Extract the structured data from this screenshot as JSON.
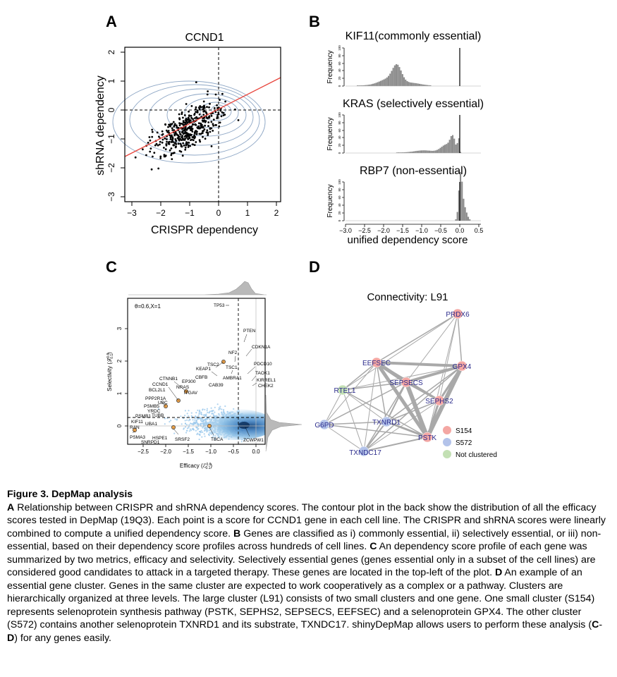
{
  "panels": {
    "A": {
      "letter": "A",
      "title": "CCND1",
      "xlabel": "CRISPR dependency",
      "ylabel": "shRNA dependency",
      "xticks": [
        "−3",
        "−2",
        "−1",
        "0",
        "1",
        "2"
      ],
      "yticks": [
        "2",
        "1",
        "0",
        "−1",
        "−2",
        "−3"
      ]
    },
    "B": {
      "letter": "B",
      "hist_titles": [
        "KIF11(commonly essential)",
        "KRAS (selectively essential)",
        "RBP7 (non-essential)"
      ],
      "ylabel": "Frequency",
      "yticks": [
        "0",
        "20",
        "40",
        "60",
        "80",
        "100"
      ],
      "xticks": [
        "−3.0",
        "−2.5",
        "−2.0",
        "−1.5",
        "−1.0",
        "−0.5",
        "0.0",
        "0.5"
      ],
      "xlabel": "unified dependency score"
    },
    "C": {
      "letter": "C",
      "param_label": "θ=0.6,X=1",
      "xlabel": "Efficacy (ℰ",
      "xlabel_sup": "0.6",
      "xlabel_sub": "0.1",
      "xlabel_end": ")",
      "ylabel": "Selectivity (𝒮",
      "ylabel_sup": "0.6",
      "ylabel_sub": "0.1",
      "ylabel_end": ")",
      "xticks": [
        "−2.5",
        "−2.0",
        "−1.5",
        "−1.0",
        "−0.5",
        "0.0"
      ],
      "yticks": [
        "0",
        "1",
        "2",
        "3"
      ],
      "genes": [
        "TP53",
        "PTEN",
        "CDKN1A",
        "NF2",
        "PDCD10",
        "TSC1",
        "TAOK1",
        "KIRREL1",
        "CHEK2",
        "TSC2",
        "KEAP1",
        "AMBRA1",
        "CAB39",
        "CBFB",
        "CTNNB1",
        "EP300",
        "ITGAV",
        "NRAS",
        "CCND1",
        "BCL2L1",
        "PPP2R1A",
        "UBC",
        "PSMB5",
        "YRDC",
        "TUBB",
        "PSMB1",
        "KIF11",
        "UBA1",
        "RAN",
        "PSMA3",
        "HSPE1",
        "SNRPD1",
        "SRSF2",
        "TBCA",
        "ZCWPW1"
      ]
    },
    "D": {
      "letter": "D",
      "title": "Connectivity: L91",
      "nodes": [
        {
          "label": "PRDX6",
          "group": "S154"
        },
        {
          "label": "EEFSEC",
          "group": "S154"
        },
        {
          "label": "GPX4",
          "group": "S154"
        },
        {
          "label": "SEPSECS",
          "group": "S154"
        },
        {
          "label": "RTEL1",
          "group": "Not clustered"
        },
        {
          "label": "SEPHS2",
          "group": "S154"
        },
        {
          "label": "TXNRD1",
          "group": "S572"
        },
        {
          "label": "G6PD",
          "group": "S572"
        },
        {
          "label": "PSTK",
          "group": "S154"
        },
        {
          "label": "TXNDC17",
          "group": "S572"
        }
      ],
      "legend": [
        {
          "label": "S154",
          "color": "#f4a7a3"
        },
        {
          "label": "S572",
          "color": "#b3c3ea"
        },
        {
          "label": "Not clustered",
          "color": "#c3e0b4"
        }
      ]
    }
  },
  "caption": {
    "title": "Figure 3. DepMap analysis",
    "s1_letter": "A",
    "s1": " Relationship between CRISPR and shRNA dependency scores. The contour plot in the back show the distribution of all the efficacy scores tested in DepMap (19Q3). Each point is a score for CCND1 gene in each cell line. The CRISPR and shRNA scores were linearly combined to compute a unified dependency score. ",
    "s2_letter": "B",
    "s2": " Genes are classified as i) commonly essential, ii) selectively essential, or iii) non-essential, based on their dependency score profiles across hundreds of cell lines. ",
    "s3_letter": "C",
    "s3": " An dependency score profile of each gene was summarized by two metrics, efficacy and selectivity. Selectively essential genes (genes essential only in a subset of the cell lines) are considered good candidates to attack in a targeted therapy. These genes are located in the top-left of the plot. ",
    "s4_letter": "D",
    "s4": " An example of an essential gene cluster. Genes in the same cluster are expected to work cooperatively as a complex or a pathway. Clusters are hierarchically organized at three levels. The large cluster (L91) consists of two small clusters and one gene. One small cluster (S154) represents selenoprotein synthesis pathway (PSTK, SEPHS2, SEPSECS, EEFSEC) and a selenoprotein GPX4. The other cluster (S572) contains another selenoprotein TXNRD1 and its substrate, TXNDC17. shinyDepMap allows users to perform these analysis (",
    "s5_c": "C",
    "s5_dash": "-",
    "s5_d": "D",
    "s5_end": ") for any genes easily."
  }
}
